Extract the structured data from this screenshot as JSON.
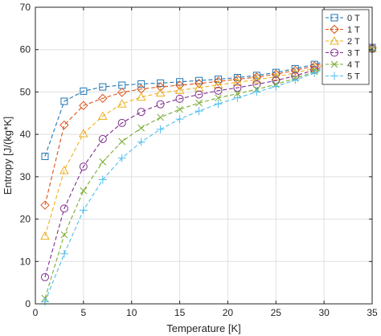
{
  "chart_data": {
    "type": "line",
    "title": "",
    "xlabel": "Temperature [K]",
    "ylabel": "Entropy [J/(kg*K]",
    "xlim": [
      0,
      35
    ],
    "ylim": [
      0,
      70
    ],
    "xticks": [
      0,
      5,
      10,
      15,
      20,
      25,
      30,
      35
    ],
    "yticks": [
      0,
      10,
      20,
      30,
      40,
      50,
      60,
      70
    ],
    "grid": true,
    "legend_position": "top-right",
    "x": [
      1,
      3,
      5,
      7,
      9,
      11,
      13,
      15,
      17,
      19,
      21,
      23,
      25,
      27,
      29,
      35
    ],
    "series": [
      {
        "name": "0 T",
        "color": "#1f77b4",
        "marker": "square",
        "values": [
          34.8,
          47.8,
          50.2,
          51.2,
          51.6,
          51.9,
          52.1,
          52.4,
          52.7,
          53.0,
          53.4,
          53.9,
          54.6,
          55.5,
          56.5,
          60.5
        ]
      },
      {
        "name": "1 T",
        "color": "#d95319",
        "marker": "diamond",
        "values": [
          23.3,
          42.2,
          46.8,
          48.5,
          49.9,
          50.7,
          51.2,
          51.6,
          52.0,
          52.5,
          53.0,
          53.5,
          54.2,
          55.1,
          56.1,
          60.4
        ]
      },
      {
        "name": "2 T",
        "color": "#edb120",
        "marker": "triangle",
        "values": [
          16.0,
          31.5,
          40.2,
          44.3,
          47.2,
          48.8,
          49.8,
          50.4,
          51.0,
          51.7,
          52.3,
          52.9,
          53.6,
          54.5,
          55.6,
          60.3
        ]
      },
      {
        "name": "3 T",
        "color": "#7e2f8e",
        "marker": "circle",
        "values": [
          6.3,
          22.5,
          32.4,
          38.9,
          42.7,
          45.3,
          47.1,
          48.4,
          49.4,
          50.3,
          51.0,
          51.8,
          52.7,
          53.8,
          55.2,
          60.2
        ]
      },
      {
        "name": "4 T",
        "color": "#77ac30",
        "marker": "x",
        "values": [
          1.3,
          16.3,
          26.7,
          33.5,
          38.3,
          41.5,
          44.0,
          45.9,
          47.4,
          48.6,
          49.6,
          50.6,
          51.8,
          53.2,
          54.8,
          60.1
        ]
      },
      {
        "name": "5 T",
        "color": "#4dbeee",
        "marker": "plus",
        "values": [
          0.5,
          11.8,
          22.1,
          29.3,
          34.4,
          38.2,
          41.2,
          43.6,
          45.5,
          47.2,
          48.6,
          50.0,
          51.3,
          52.8,
          54.5,
          60.0
        ]
      }
    ]
  }
}
